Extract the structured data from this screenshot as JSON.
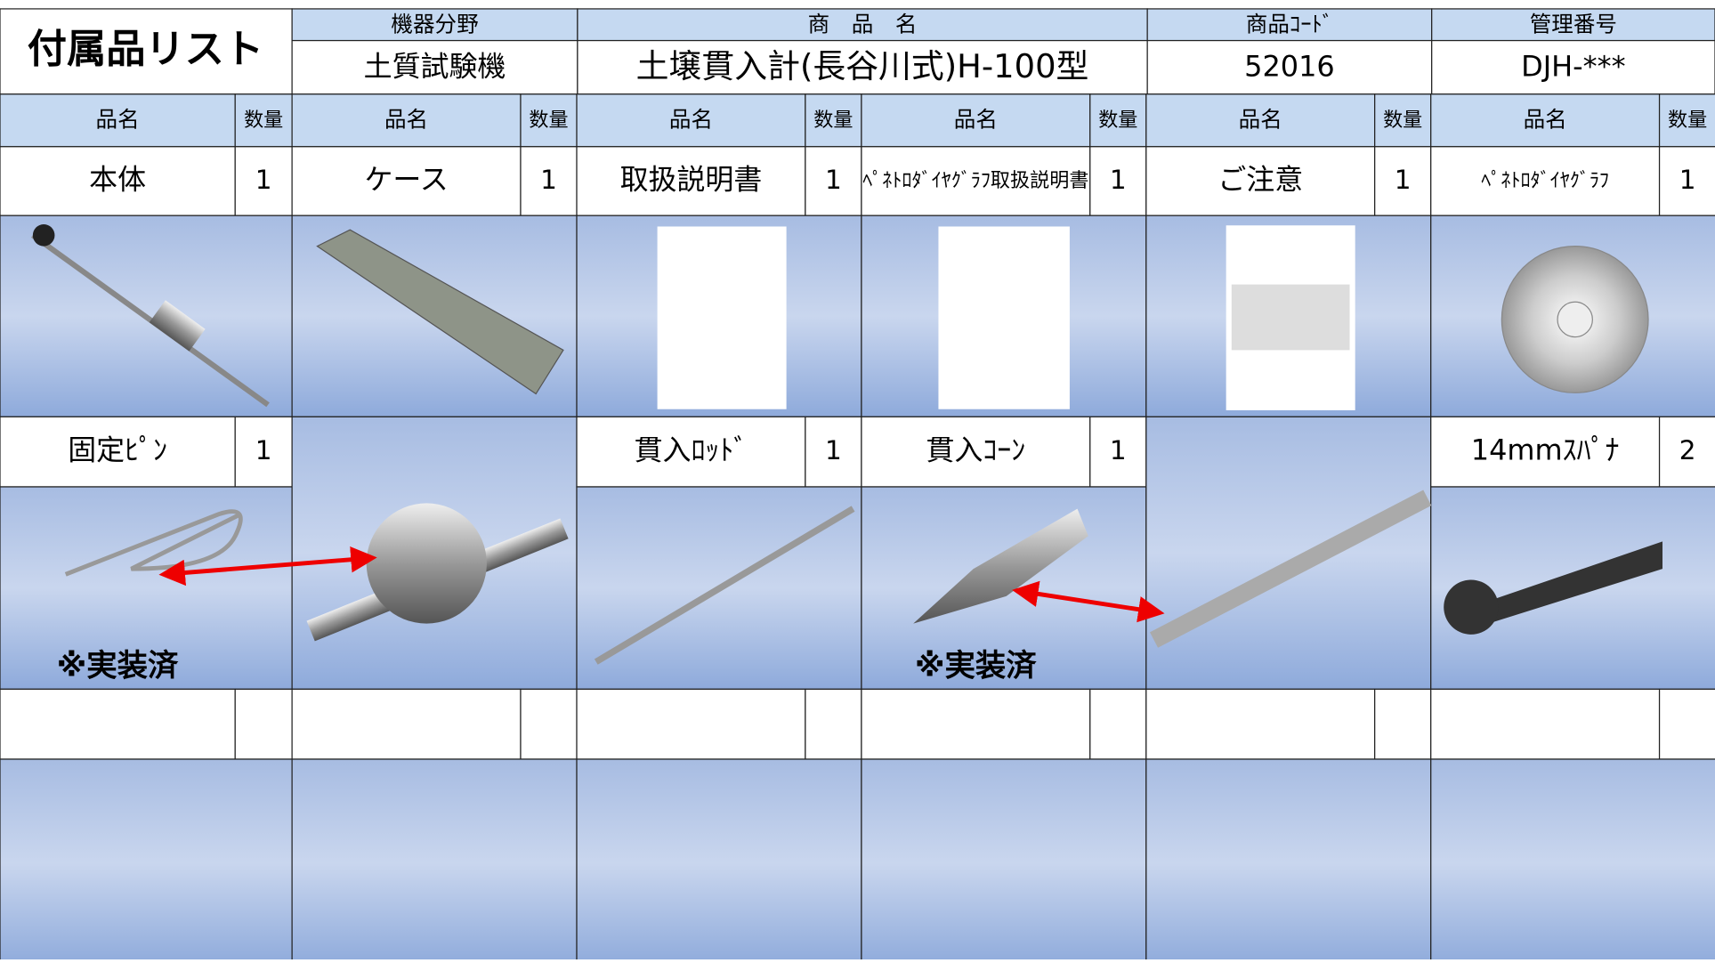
{
  "header": {
    "title": "付属品リスト",
    "labels": [
      "機器分野",
      "商　品　名",
      "商品ｺｰﾄﾞ",
      "管理番号"
    ],
    "values": [
      "土質試験機",
      "土壌貫入計(長谷川式)H-100型",
      "52016",
      "DJH-***"
    ]
  },
  "columns": {
    "name": "品名",
    "qty": "数量"
  },
  "items": [
    [
      {
        "name": "本体",
        "qty": 1
      },
      {
        "name": "ケース",
        "qty": 1
      },
      {
        "name": "取扱説明書",
        "qty": 1
      },
      {
        "name": "ﾍﾟﾈﾄﾛﾀﾞｲﾔｸﾞﾗﾌ取扱説明書",
        "qty": 1
      },
      {
        "name": "ご注意",
        "qty": 1
      },
      {
        "name": "ﾍﾟﾈﾄﾛﾀﾞｲﾔｸﾞﾗﾌ",
        "qty": 1
      }
    ],
    [
      {
        "name": "固定ﾋﾟﾝ",
        "qty": 1
      },
      null,
      {
        "name": "貫入ﾛｯﾄﾞ",
        "qty": 1
      },
      {
        "name": "貫入ｺｰﾝ",
        "qty": 1
      },
      null,
      {
        "name": "14mmｽﾊﾟﾅ",
        "qty": 2
      }
    ]
  ],
  "notes": [
    "※実装済",
    null,
    null,
    "※実装済",
    null,
    null
  ]
}
